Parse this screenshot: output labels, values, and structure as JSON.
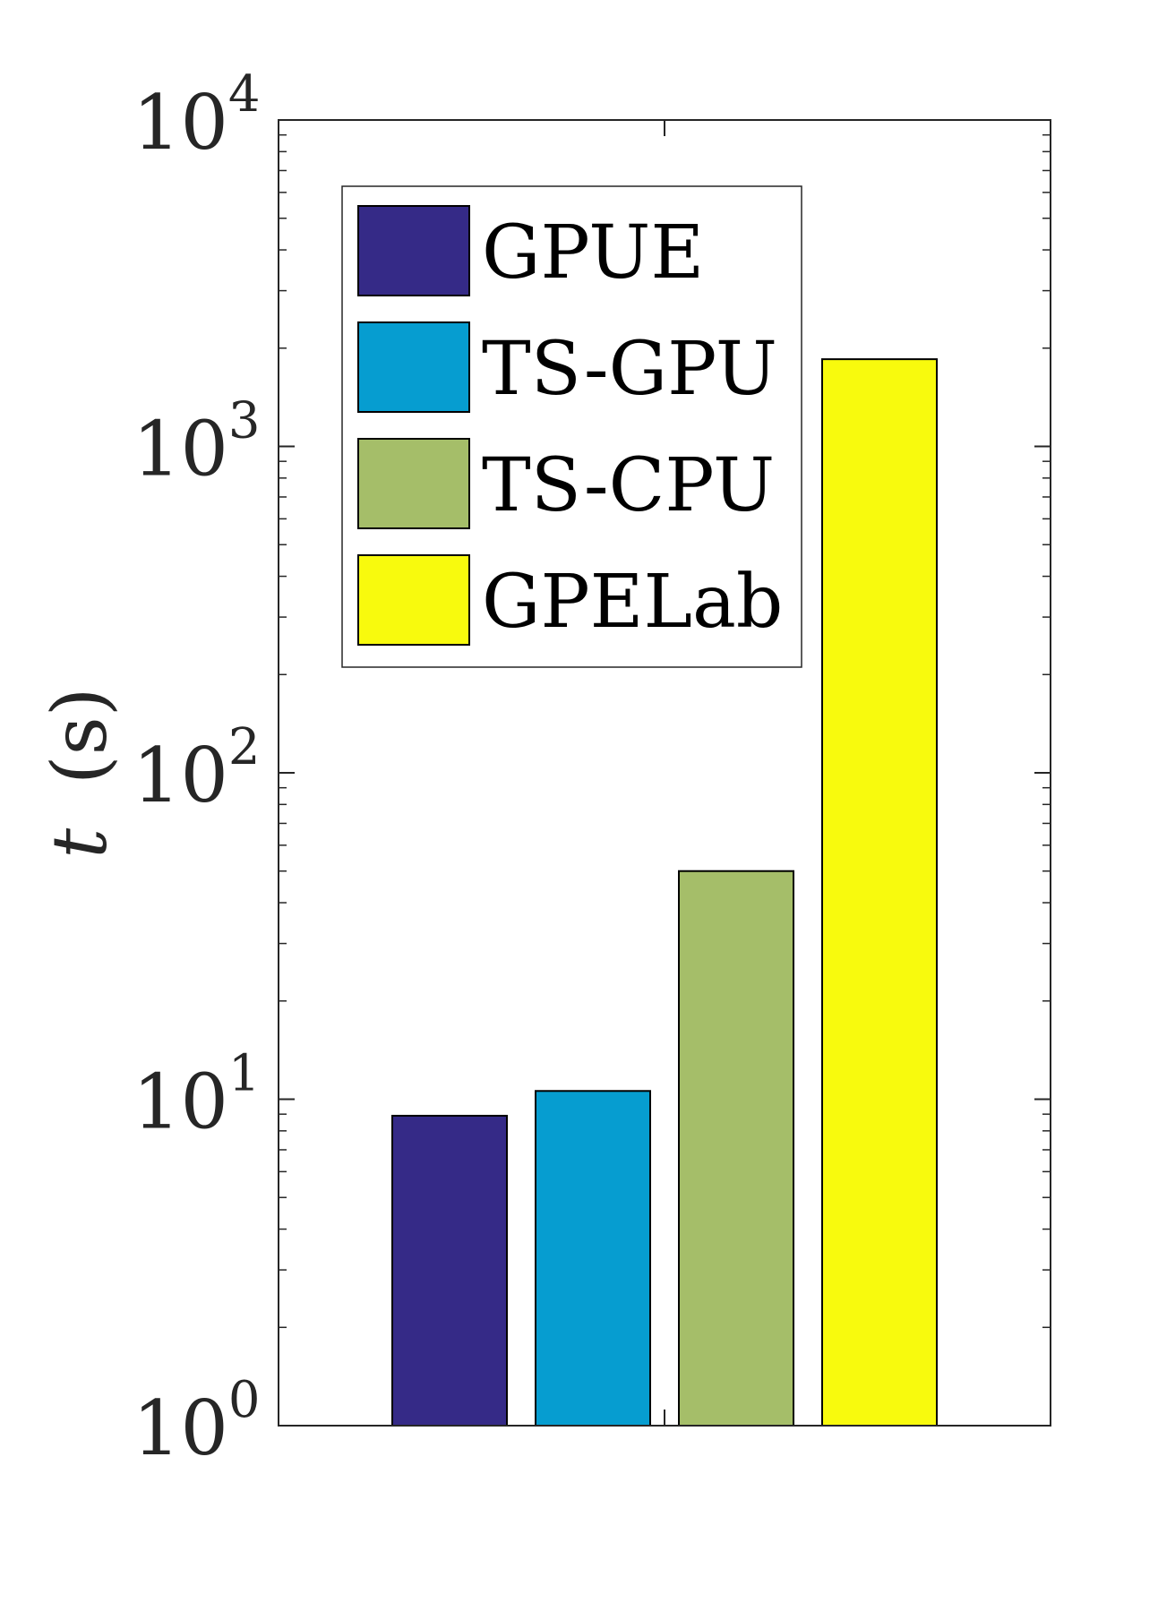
{
  "chart_data": {
    "type": "bar",
    "yscale": "log",
    "ylim": [
      1,
      10000
    ],
    "ylabel": {
      "var": "t",
      "unit": "(s)"
    },
    "xlabel": "",
    "title": "",
    "grid": false,
    "legend_position": "top-left",
    "yticks": [
      {
        "value": 1,
        "base": "10",
        "exp": "0"
      },
      {
        "value": 10,
        "base": "10",
        "exp": "1"
      },
      {
        "value": 100,
        "base": "10",
        "exp": "2"
      },
      {
        "value": 1000,
        "base": "10",
        "exp": "3"
      },
      {
        "value": 10000,
        "base": "10",
        "exp": "4"
      }
    ],
    "series": [
      {
        "name": "GPUE",
        "value": 8.9,
        "color": "#352a87"
      },
      {
        "name": "TS-GPU",
        "value": 10.6,
        "color": "#069dd0"
      },
      {
        "name": "TS-CPU",
        "value": 50,
        "color": "#a5be69"
      },
      {
        "name": "GPELab",
        "value": 1850,
        "color": "#f8fa0d"
      }
    ]
  }
}
